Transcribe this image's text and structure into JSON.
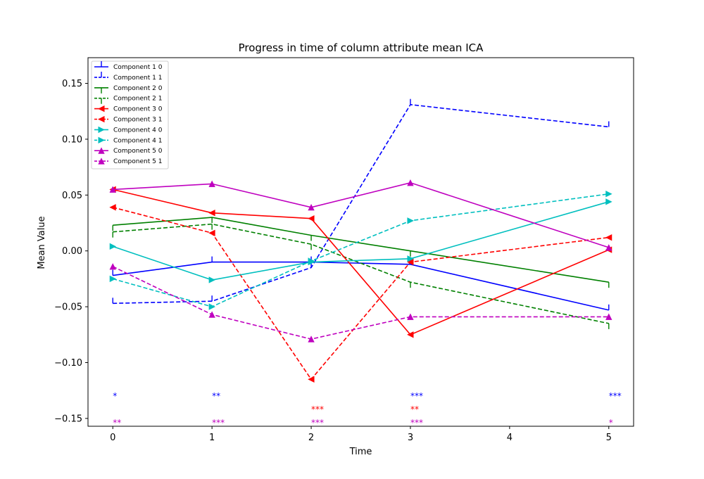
{
  "chart_data": {
    "type": "line",
    "title": "Progress in time of column attribute mean ICA",
    "xlabel": "Time",
    "ylabel": "Mean Value",
    "xlim": [
      -0.25,
      5.25
    ],
    "ylim": [
      -0.157,
      0.173
    ],
    "xticks": [
      0,
      1,
      2,
      3,
      4,
      5
    ],
    "xtick_labels": [
      "0",
      "1",
      "2",
      "3",
      "4",
      "5"
    ],
    "yticks": [
      -0.15,
      -0.1,
      -0.05,
      0.0,
      0.05,
      0.1,
      0.15
    ],
    "ytick_labels": [
      "−0.15",
      "−0.10",
      "−0.05",
      "0.00",
      "0.05",
      "0.10",
      "0.15"
    ],
    "grid": false,
    "legend_position": "top-left",
    "series": [
      {
        "name": "Component 1 0",
        "color": "#0000ff",
        "dash": "solid",
        "marker": "tick-up",
        "x": [
          0,
          1,
          2,
          3,
          5
        ],
        "y": [
          -0.022,
          -0.01,
          -0.01,
          -0.012,
          -0.053
        ]
      },
      {
        "name": "Component 1 1",
        "color": "#0000ff",
        "dash": "dashed",
        "marker": "tick-up",
        "x": [
          0,
          1,
          2,
          3,
          5
        ],
        "y": [
          -0.047,
          -0.045,
          -0.015,
          0.131,
          0.111
        ]
      },
      {
        "name": "Component 2 0",
        "color": "#008000",
        "dash": "solid",
        "marker": "tick-down",
        "x": [
          0,
          1,
          2,
          3,
          5
        ],
        "y": [
          0.023,
          0.03,
          0.014,
          0.0,
          -0.028
        ]
      },
      {
        "name": "Component 2 1",
        "color": "#008000",
        "dash": "dashed",
        "marker": "tick-down",
        "x": [
          0,
          1,
          2,
          3,
          5
        ],
        "y": [
          0.017,
          0.024,
          0.006,
          -0.028,
          -0.065
        ]
      },
      {
        "name": "Component 3 0",
        "color": "#ff0000",
        "dash": "solid",
        "marker": "triangle-left",
        "x": [
          0,
          1,
          2,
          3,
          5
        ],
        "y": [
          0.055,
          0.034,
          0.029,
          -0.075,
          0.001
        ]
      },
      {
        "name": "Component 3 1",
        "color": "#ff0000",
        "dash": "dashed",
        "marker": "triangle-left",
        "x": [
          0,
          1,
          2,
          3,
          5
        ],
        "y": [
          0.039,
          0.016,
          -0.115,
          -0.01,
          0.012
        ]
      },
      {
        "name": "Component 4 0",
        "color": "#00bfbf",
        "dash": "solid",
        "marker": "triangle-right",
        "x": [
          0,
          1,
          2,
          3,
          5
        ],
        "y": [
          0.004,
          -0.026,
          -0.01,
          -0.007,
          0.044
        ]
      },
      {
        "name": "Component 4 1",
        "color": "#00bfbf",
        "dash": "dashed",
        "marker": "triangle-right",
        "x": [
          0,
          1,
          2,
          3,
          5
        ],
        "y": [
          -0.025,
          -0.05,
          -0.009,
          0.027,
          0.051
        ]
      },
      {
        "name": "Component 5 0",
        "color": "#bf00bf",
        "dash": "solid",
        "marker": "triangle-up",
        "x": [
          0,
          1,
          2,
          3,
          5
        ],
        "y": [
          0.055,
          0.06,
          0.039,
          0.061,
          0.003
        ]
      },
      {
        "name": "Component 5 1",
        "color": "#bf00bf",
        "dash": "dashed",
        "marker": "triangle-up",
        "x": [
          0,
          1,
          2,
          3,
          5
        ],
        "y": [
          -0.014,
          -0.057,
          -0.079,
          -0.059,
          -0.059
        ]
      }
    ],
    "annotations": [
      {
        "x": 0,
        "y": -0.13,
        "text": "*",
        "color": "#0000ff"
      },
      {
        "x": 1,
        "y": -0.13,
        "text": "**",
        "color": "#0000ff"
      },
      {
        "x": 3,
        "y": -0.13,
        "text": "***",
        "color": "#0000ff"
      },
      {
        "x": 5,
        "y": -0.13,
        "text": "***",
        "color": "#0000ff"
      },
      {
        "x": 2,
        "y": -0.142,
        "text": "***",
        "color": "#ff0000"
      },
      {
        "x": 3,
        "y": -0.142,
        "text": "**",
        "color": "#ff0000"
      },
      {
        "x": 0,
        "y": -0.154,
        "text": "**",
        "color": "#bf00bf"
      },
      {
        "x": 1,
        "y": -0.154,
        "text": "***",
        "color": "#bf00bf"
      },
      {
        "x": 2,
        "y": -0.154,
        "text": "***",
        "color": "#bf00bf"
      },
      {
        "x": 3,
        "y": -0.154,
        "text": "***",
        "color": "#bf00bf"
      },
      {
        "x": 5,
        "y": -0.154,
        "text": "*",
        "color": "#bf00bf"
      }
    ]
  }
}
